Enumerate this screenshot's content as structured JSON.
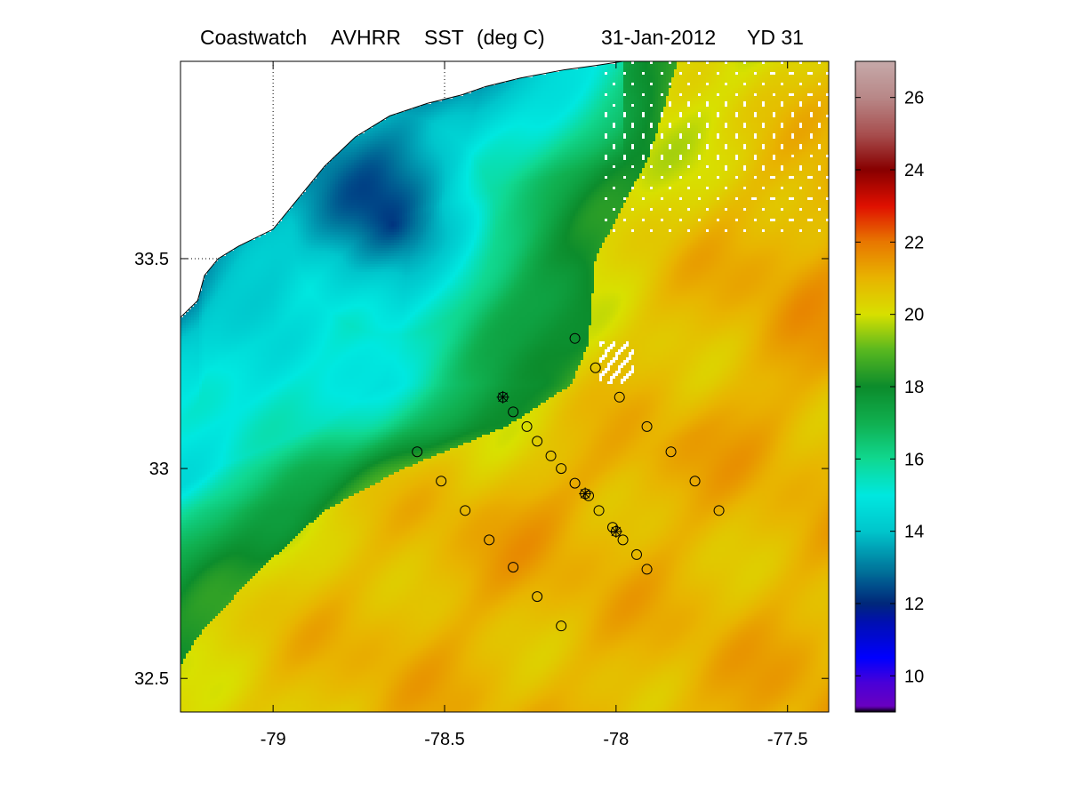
{
  "title": {
    "source": "Coastwatch",
    "sensor": "AVHRR",
    "product": "SST",
    "units": "(deg C)",
    "date": "31-Jan-2012",
    "yearday": "YD 31"
  },
  "map": {
    "lon_range": [
      -79.27,
      -77.38
    ],
    "lat_range": [
      32.42,
      33.97
    ],
    "x_ticks": [
      {
        "value": -79,
        "label": "-79"
      },
      {
        "value": -78.5,
        "label": "-78.5"
      },
      {
        "value": -78,
        "label": "-78"
      },
      {
        "value": -77.5,
        "label": "-77.5"
      }
    ],
    "y_ticks": [
      {
        "value": 33.5,
        "label": "33.5"
      },
      {
        "value": 33,
        "label": "33"
      },
      {
        "value": 32.5,
        "label": "32.5"
      }
    ],
    "gridlines": {
      "lons": [
        -79,
        -78.5,
        -78
      ],
      "lats": [
        33.5
      ],
      "style": "dotted"
    },
    "land_color": "#ffffff",
    "coastline_color": "#000000"
  },
  "colorbar": {
    "range": [
      9,
      27
    ],
    "ticks": [
      {
        "value": 10,
        "label": "10"
      },
      {
        "value": 12,
        "label": "12"
      },
      {
        "value": 14,
        "label": "14"
      },
      {
        "value": 16,
        "label": "16"
      },
      {
        "value": 18,
        "label": "18"
      },
      {
        "value": 20,
        "label": "20"
      },
      {
        "value": 22,
        "label": "22"
      },
      {
        "value": 24,
        "label": "24"
      },
      {
        "value": 26,
        "label": "26"
      }
    ],
    "stops": [
      {
        "v": 9,
        "c": "#000000"
      },
      {
        "v": 9.15,
        "c": "#6a00c0"
      },
      {
        "v": 9.8,
        "c": "#4a00d8"
      },
      {
        "v": 10.5,
        "c": "#0000ff"
      },
      {
        "v": 11.5,
        "c": "#0010b0"
      },
      {
        "v": 12,
        "c": "#00287a"
      },
      {
        "v": 13,
        "c": "#007a9e"
      },
      {
        "v": 14,
        "c": "#00c6cc"
      },
      {
        "v": 15,
        "c": "#00e8e0"
      },
      {
        "v": 16,
        "c": "#10d890"
      },
      {
        "v": 17,
        "c": "#10b050"
      },
      {
        "v": 18,
        "c": "#0c8c2c"
      },
      {
        "v": 19,
        "c": "#58b820"
      },
      {
        "v": 20,
        "c": "#d8e000"
      },
      {
        "v": 21,
        "c": "#e8b400"
      },
      {
        "v": 22,
        "c": "#e87800"
      },
      {
        "v": 23,
        "c": "#e01000"
      },
      {
        "v": 24,
        "c": "#880000"
      },
      {
        "v": 25,
        "c": "#a85050"
      },
      {
        "v": 26,
        "c": "#b88888"
      },
      {
        "v": 27,
        "c": "#c6aaaa"
      }
    ]
  },
  "sst_field": {
    "base_offshore": 20.6,
    "cold_shelf_min": 12.4,
    "front_curve": [
      [
        33.97,
        -77.82
      ],
      [
        33.75,
        -77.9
      ],
      [
        33.5,
        -78.06
      ],
      [
        33.3,
        -78.08
      ],
      [
        33.2,
        -78.13
      ],
      [
        33.1,
        -78.32
      ],
      [
        33.0,
        -78.62
      ],
      [
        32.9,
        -78.85
      ],
      [
        32.75,
        -79.05
      ],
      [
        32.6,
        -79.22
      ],
      [
        32.42,
        -79.35
      ]
    ],
    "cold_core": {
      "lon": -78.65,
      "lat": 33.58
    }
  },
  "stations": [
    {
      "lon": -78.12,
      "lat": 33.31,
      "type": "circle"
    },
    {
      "lon": -78.06,
      "lat": 33.24,
      "type": "circle"
    },
    {
      "lon": -77.99,
      "lat": 33.17,
      "type": "circle"
    },
    {
      "lon": -77.91,
      "lat": 33.1,
      "type": "circle"
    },
    {
      "lon": -77.84,
      "lat": 33.04,
      "type": "circle"
    },
    {
      "lon": -77.77,
      "lat": 32.97,
      "type": "circle"
    },
    {
      "lon": -77.7,
      "lat": 32.9,
      "type": "circle"
    },
    {
      "lon": -78.33,
      "lat": 33.17,
      "type": "star"
    },
    {
      "lon": -78.3,
      "lat": 33.135,
      "type": "circle"
    },
    {
      "lon": -78.26,
      "lat": 33.1,
      "type": "circle"
    },
    {
      "lon": -78.23,
      "lat": 33.065,
      "type": "circle"
    },
    {
      "lon": -78.19,
      "lat": 33.03,
      "type": "circle"
    },
    {
      "lon": -78.16,
      "lat": 33.0,
      "type": "circle"
    },
    {
      "lon": -78.12,
      "lat": 32.965,
      "type": "circle"
    },
    {
      "lon": -78.09,
      "lat": 32.94,
      "type": "star"
    },
    {
      "lon": -78.08,
      "lat": 32.935,
      "type": "circle"
    },
    {
      "lon": -78.05,
      "lat": 32.9,
      "type": "circle"
    },
    {
      "lon": -78.01,
      "lat": 32.86,
      "type": "circle"
    },
    {
      "lon": -78.0,
      "lat": 32.85,
      "type": "star"
    },
    {
      "lon": -77.98,
      "lat": 32.83,
      "type": "circle"
    },
    {
      "lon": -77.94,
      "lat": 32.795,
      "type": "circle"
    },
    {
      "lon": -77.91,
      "lat": 32.76,
      "type": "circle"
    },
    {
      "lon": -78.58,
      "lat": 33.04,
      "type": "circle"
    },
    {
      "lon": -78.51,
      "lat": 32.97,
      "type": "circle"
    },
    {
      "lon": -78.44,
      "lat": 32.9,
      "type": "circle"
    },
    {
      "lon": -78.37,
      "lat": 32.83,
      "type": "circle"
    },
    {
      "lon": -78.3,
      "lat": 32.765,
      "type": "circle"
    },
    {
      "lon": -78.23,
      "lat": 32.695,
      "type": "circle"
    },
    {
      "lon": -78.16,
      "lat": 32.625,
      "type": "circle"
    }
  ]
}
